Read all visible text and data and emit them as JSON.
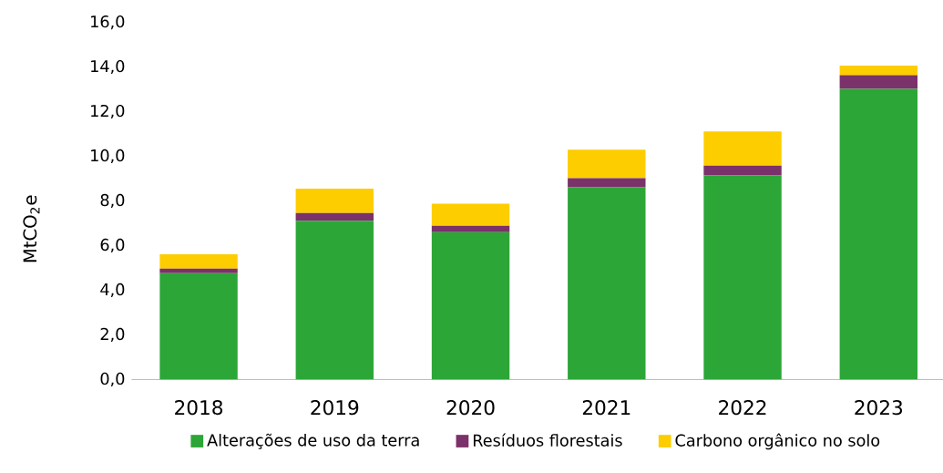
{
  "chart_data": {
    "type": "bar",
    "stacked": true,
    "ylabel": "MtCO$_{2}$e",
    "categories": [
      "2018",
      "2019",
      "2020",
      "2021",
      "2022",
      "2023"
    ],
    "series": [
      {
        "name": "Alterações de uso da terra",
        "color": "#2ca637",
        "values": [
          4.76,
          7.11,
          6.6,
          8.62,
          9.14,
          13.02
        ]
      },
      {
        "name": "Resíduos florestais",
        "color": "#7b316a",
        "values": [
          0.21,
          0.35,
          0.28,
          0.4,
          0.44,
          0.61
        ]
      },
      {
        "name": "Carbono orgânico no solo",
        "color": "#fdcd00",
        "values": [
          0.64,
          1.09,
          0.99,
          1.27,
          1.53,
          0.43
        ]
      }
    ],
    "ylim": [
      0,
      16
    ],
    "yticks": [
      {
        "value": 0,
        "label": "0,0"
      },
      {
        "value": 2,
        "label": "2,0"
      },
      {
        "value": 4,
        "label": "4,0"
      },
      {
        "value": 6,
        "label": "6,0"
      },
      {
        "value": 8,
        "label": "8,0"
      },
      {
        "value": 10,
        "label": "10,0"
      },
      {
        "value": 12,
        "label": "12,0"
      },
      {
        "value": 14,
        "label": "14,0"
      },
      {
        "value": 16,
        "label": "16,0"
      }
    ],
    "legend": "bottom"
  }
}
